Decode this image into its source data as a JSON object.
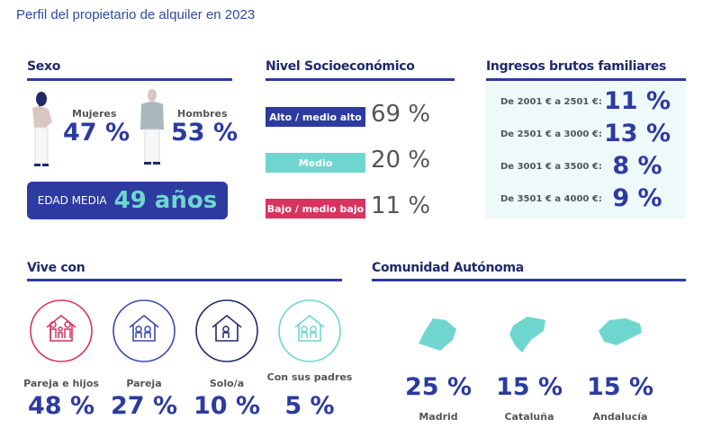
{
  "title": "Perfil del propietario de alquiler en 2023",
  "sexo": {
    "header": "Sexo",
    "mujeres_label": "Mujeres",
    "mujeres_value": "47 %",
    "hombres_label": "Hombres",
    "hombres_value": "53 %",
    "edad_label": "EDAD MEDIA",
    "edad_value": "49 años"
  },
  "nivel": {
    "header": "Nivel Socioeconómico",
    "items": [
      {
        "label": "Alto / medio alto",
        "value": "69 %",
        "color": "#2d3ba0"
      },
      {
        "label": "Medio",
        "value": "20 %",
        "color": "#6fd6cf"
      },
      {
        "label": "Bajo / medio bajo",
        "value": "11 %",
        "color": "#d7345f"
      }
    ]
  },
  "ingresos": {
    "header": "Ingresos brutos familiares",
    "items": [
      {
        "label": "De 2001 € a 2501 €:",
        "value": "11 %"
      },
      {
        "label": "De 2501 € a 3000 €:",
        "value": "13 %"
      },
      {
        "label": "De 3001 € a 3500 €:",
        "value": "8 %"
      },
      {
        "label": "De 3501 € a 4000 €:",
        "value": "9 %"
      }
    ]
  },
  "vive": {
    "header": "Vive con",
    "items": [
      {
        "label": "Pareja e hijos",
        "value": "48 %",
        "color": "#d7345f",
        "icon": "family-house-icon"
      },
      {
        "label": "Pareja",
        "value": "27 %",
        "color": "#3a4ab0",
        "icon": "couple-house-icon"
      },
      {
        "label": "Solo/a",
        "value": "10 %",
        "color": "#1f2a6b",
        "icon": "single-house-icon"
      },
      {
        "label": "Con sus padres",
        "value": "5 %",
        "color": "#6fd6cf",
        "icon": "parents-house-icon"
      }
    ]
  },
  "comunidad": {
    "header": "Comunidad Autónoma",
    "items": [
      {
        "label": "Madrid",
        "value": "25 %"
      },
      {
        "label": "Cataluña",
        "value": "15 %"
      },
      {
        "label": "Andalucía",
        "value": "15 %"
      }
    ],
    "map_color": "#6fd6cf"
  }
}
